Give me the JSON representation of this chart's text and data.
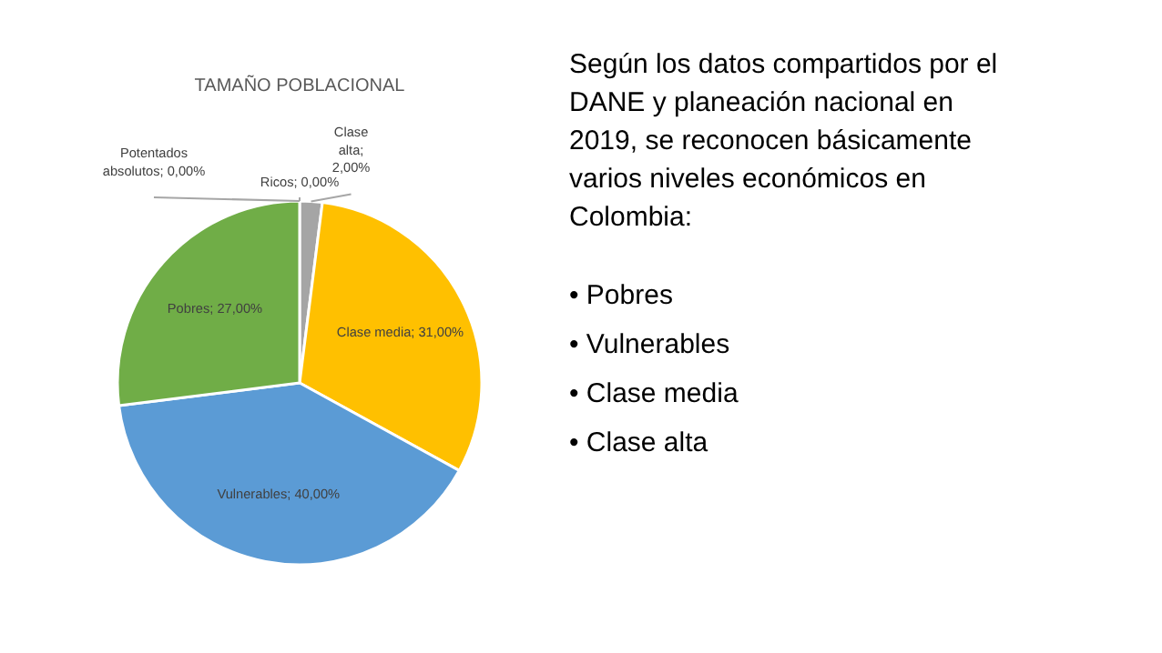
{
  "chart_data": [
    {
      "type": "pie",
      "title": "TAMAÑO POBLACIONAL",
      "values": [
        2,
        31,
        40,
        27,
        0,
        0
      ],
      "colors": [
        "#a5a5a5",
        "#ffc000",
        "#5b9bd5",
        "#70ad47",
        "#264478",
        "#9e480e"
      ],
      "value_labels": [
        "Clase alta; 2,00%",
        "Clase media; 31,00%",
        "Vulnerables; 40,00%",
        "Pobres; 27,00%",
        "Potentados absolutos; 0,00%",
        "Ricos; 0,00%"
      ]
    },
    {
      "type": "other",
      "annotations": [
        "Según los datos compartidos por el DANE y planeación nacional en 2019, se reconocen básicamente varios niveles económicos en Colombia:",
        "• Pobres",
        "• Vulnerables",
        "• Clase media",
        "• Clase alta"
      ]
    }
  ]
}
